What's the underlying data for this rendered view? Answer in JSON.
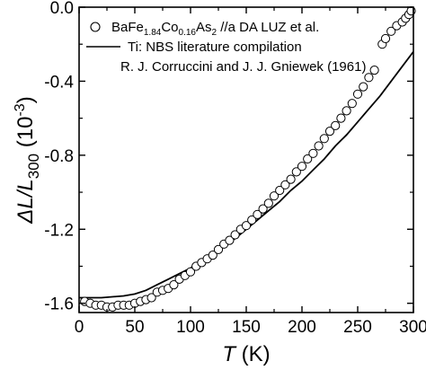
{
  "chart_data": {
    "type": "scatter",
    "xlabel_symbol": "T",
    "xlabel_unit": " (K)",
    "ylabel_prefix": "ΔL/L",
    "ylabel_sub": "300",
    "ylabel_unit": " (10",
    "ylabel_exp": "-3",
    "ylabel_close": ")",
    "xlim": [
      0,
      300
    ],
    "ylim": [
      -1.65,
      0.0
    ],
    "xticks": [
      0,
      50,
      100,
      150,
      200,
      250,
      300
    ],
    "yticks": [
      0.0,
      -0.4,
      -0.8,
      -1.2,
      -1.6
    ],
    "ytick_labels": [
      "0.0",
      "-0.4",
      "-0.8",
      "-1.2",
      "-1.6"
    ],
    "legend_position": "top-left",
    "legend": {
      "scatter_parts": [
        "BaFe",
        "1.84",
        "Co",
        "0.16",
        "As",
        "2",
        " //a DA LUZ et al."
      ],
      "line_label_1": "Ti: NBS literature compilation",
      "line_label_2": "R. J. Corruccini and J. J. Gniewek (1961)"
    },
    "series": [
      {
        "kind": "markers",
        "marker": "open-circle",
        "x": [
          5,
          10,
          15,
          20,
          25,
          30,
          35,
          40,
          45,
          50,
          55,
          60,
          65,
          70,
          75,
          80,
          85,
          90,
          95,
          100,
          105,
          110,
          115,
          120,
          125,
          130,
          135,
          140,
          145,
          150,
          155,
          160,
          165,
          170,
          175,
          180,
          185,
          190,
          195,
          200,
          205,
          210,
          215,
          220,
          225,
          230,
          235,
          240,
          245,
          250,
          255,
          260,
          265,
          272,
          275,
          280,
          285,
          290,
          293,
          296,
          298
        ],
        "y": [
          -1.59,
          -1.6,
          -1.61,
          -1.61,
          -1.62,
          -1.62,
          -1.61,
          -1.61,
          -1.61,
          -1.6,
          -1.59,
          -1.58,
          -1.57,
          -1.54,
          -1.53,
          -1.52,
          -1.5,
          -1.47,
          -1.45,
          -1.43,
          -1.4,
          -1.38,
          -1.36,
          -1.34,
          -1.31,
          -1.28,
          -1.26,
          -1.23,
          -1.2,
          -1.18,
          -1.15,
          -1.12,
          -1.09,
          -1.06,
          -1.02,
          -0.99,
          -0.96,
          -0.93,
          -0.89,
          -0.86,
          -0.82,
          -0.79,
          -0.75,
          -0.71,
          -0.67,
          -0.64,
          -0.6,
          -0.56,
          -0.52,
          -0.47,
          -0.43,
          -0.38,
          -0.34,
          -0.2,
          -0.17,
          -0.13,
          -0.1,
          -0.08,
          -0.06,
          -0.04,
          -0.02
        ]
      },
      {
        "kind": "line",
        "x": [
          0,
          20,
          40,
          50,
          60,
          70,
          80,
          90,
          100,
          110,
          120,
          130,
          140,
          150,
          160,
          170,
          180,
          190,
          200,
          210,
          220,
          230,
          240,
          250,
          260,
          270,
          280,
          290,
          300
        ],
        "y": [
          -1.57,
          -1.57,
          -1.56,
          -1.55,
          -1.53,
          -1.5,
          -1.47,
          -1.44,
          -1.41,
          -1.37,
          -1.33,
          -1.29,
          -1.25,
          -1.2,
          -1.15,
          -1.1,
          -1.05,
          -0.99,
          -0.94,
          -0.88,
          -0.82,
          -0.75,
          -0.69,
          -0.62,
          -0.55,
          -0.48,
          -0.4,
          -0.32,
          -0.24
        ]
      }
    ]
  }
}
